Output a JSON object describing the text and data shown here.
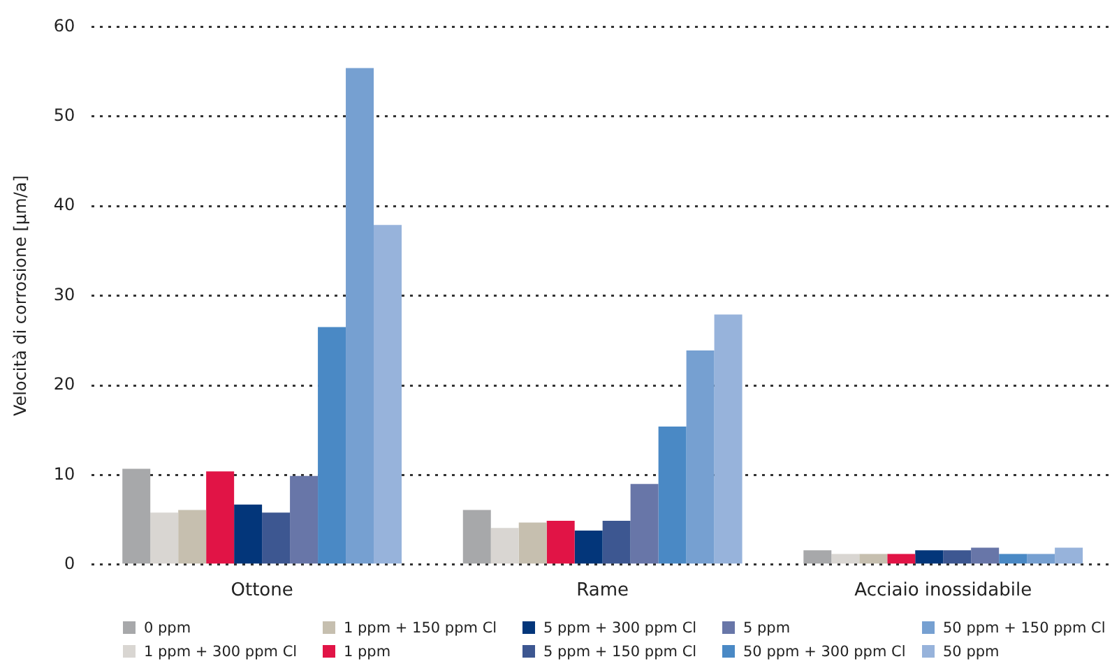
{
  "chart_data": {
    "type": "bar",
    "ylabel": "Velocità di corrosione [µm/a]",
    "categories": [
      "Ottone",
      "Rame",
      "Acciaio inossidabile"
    ],
    "series": [
      {
        "name": "0 ppm",
        "color": "#a7a8aa",
        "values": [
          10.7,
          6.1,
          1.6
        ]
      },
      {
        "name": "1 ppm + 300 ppm Cl",
        "color": "#d9d6d2",
        "values": [
          5.8,
          4.1,
          1.2
        ]
      },
      {
        "name": "1 ppm + 150 ppm Cl",
        "color": "#c6bfaf",
        "values": [
          6.1,
          4.7,
          1.2
        ]
      },
      {
        "name": "1 ppm",
        "color": "#e11446",
        "values": [
          10.4,
          4.9,
          1.2
        ]
      },
      {
        "name": "5 ppm + 300 ppm Cl",
        "color": "#03367a",
        "values": [
          6.7,
          3.8,
          1.6
        ]
      },
      {
        "name": "5 ppm + 150 ppm Cl",
        "color": "#3d5791",
        "values": [
          5.8,
          4.9,
          1.6
        ]
      },
      {
        "name": "5 ppm",
        "color": "#6876a8",
        "values": [
          9.9,
          9.0,
          1.9
        ]
      },
      {
        "name": "50 ppm + 300 ppm Cl",
        "color": "#4a89c5",
        "values": [
          26.5,
          15.4,
          1.2
        ]
      },
      {
        "name": "50 ppm + 150 ppm Cl",
        "color": "#76a0d1",
        "values": [
          55.4,
          23.9,
          1.2
        ]
      },
      {
        "name": "50 ppm",
        "color": "#97b3db",
        "values": [
          37.9,
          27.9,
          1.9
        ]
      }
    ],
    "ylim": [
      0,
      60
    ],
    "yticks": [
      0,
      10,
      20,
      30,
      40,
      50,
      60
    ],
    "grid": "y",
    "legend": "bottom"
  }
}
